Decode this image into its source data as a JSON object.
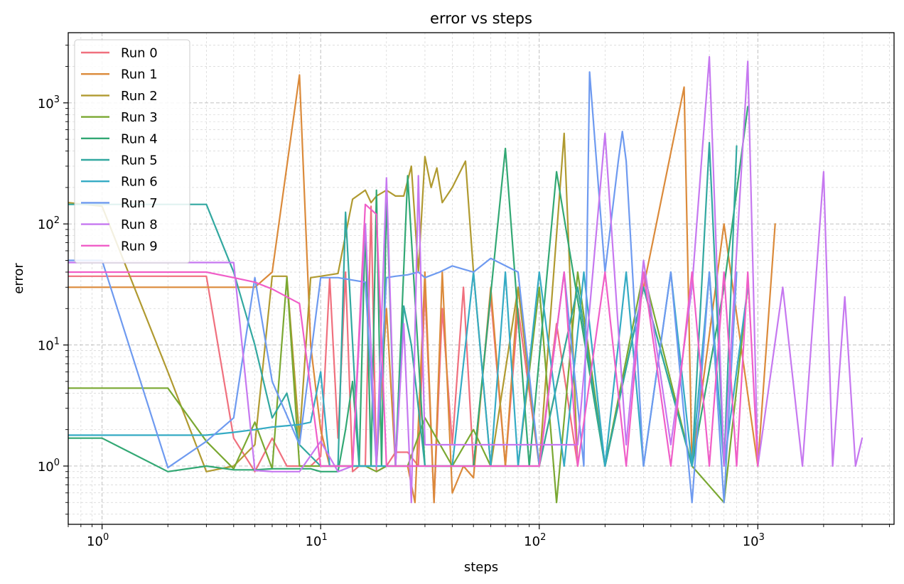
{
  "chart_data": {
    "type": "line",
    "title": "error vs steps",
    "xlabel": "steps",
    "ylabel": "error",
    "xscale": "log",
    "yscale": "log",
    "xlim": [
      0.7,
      4200
    ],
    "ylim": [
      0.33,
      3800
    ],
    "x_ticks": [
      {
        "value": 1,
        "base": "10",
        "exp": "0"
      },
      {
        "value": 10,
        "base": "10",
        "exp": "1"
      },
      {
        "value": 100,
        "base": "10",
        "exp": "2"
      },
      {
        "value": 1000,
        "base": "10",
        "exp": "3"
      }
    ],
    "y_ticks": [
      {
        "value": 1,
        "base": "10",
        "exp": "0"
      },
      {
        "value": 10,
        "base": "10",
        "exp": "1"
      },
      {
        "value": 100,
        "base": "10",
        "exp": "2"
      },
      {
        "value": 1000,
        "base": "10",
        "exp": "3"
      }
    ],
    "grid": true,
    "legend_position": "top-left",
    "series": [
      {
        "name": "Run 0",
        "color": "#f0707e",
        "x": [
          0.7,
          1,
          2,
          3,
          4,
          5,
          6,
          7,
          8,
          9,
          10,
          11,
          12,
          13,
          14,
          15,
          16,
          17,
          18,
          20,
          22,
          25,
          28,
          30,
          33,
          36,
          40,
          45,
          50,
          60,
          70,
          80,
          100,
          120,
          150
        ],
        "y": [
          37,
          37,
          37,
          37,
          1.7,
          0.9,
          1.7,
          1,
          1,
          1,
          1.2,
          36,
          1.7,
          40,
          0.9,
          1,
          1,
          140,
          0.9,
          1,
          1.3,
          1.3,
          1,
          30,
          0.5,
          20,
          1.5,
          30,
          1,
          25,
          1,
          20,
          1,
          15,
          1
        ]
      },
      {
        "name": "Run 1",
        "color": "#db8a3a",
        "x": [
          0.7,
          1,
          2,
          3,
          4,
          5,
          6,
          8,
          9,
          10,
          11,
          12,
          15,
          18,
          20,
          22,
          25,
          27,
          30,
          33,
          36,
          40,
          45,
          50,
          60,
          70,
          80,
          100,
          150,
          200,
          300,
          460,
          500,
          700,
          1000,
          1200
        ],
        "y": [
          30,
          30,
          30,
          30,
          30,
          30,
          40,
          1700,
          10,
          2,
          1,
          1,
          1,
          1,
          20,
          1,
          1,
          0.5,
          40,
          0.5,
          40,
          0.6,
          1,
          0.8,
          30,
          1,
          30,
          1,
          30,
          1,
          30,
          1350,
          1,
          100,
          1,
          100
        ]
      },
      {
        "name": "Run 2",
        "color": "#b09a30",
        "x": [
          0.7,
          1,
          2,
          3,
          4,
          5,
          6,
          7,
          8,
          9,
          10,
          12,
          14,
          16,
          17,
          18,
          20,
          22,
          24,
          26,
          28,
          30,
          32,
          34,
          36,
          40,
          46,
          50,
          60,
          80,
          100,
          130,
          150
        ],
        "y": [
          150,
          140,
          6,
          0.9,
          1,
          1.5,
          37,
          37,
          1.7,
          36,
          37,
          39,
          160,
          190,
          150,
          170,
          190,
          170,
          170,
          300,
          40,
          360,
          200,
          290,
          150,
          200,
          330,
          40,
          1,
          30,
          1,
          560,
          1
        ]
      },
      {
        "name": "Run 3",
        "color": "#7aa832",
        "x": [
          0.7,
          1,
          2,
          3,
          4,
          5,
          6,
          7,
          8,
          10,
          12,
          14,
          16,
          18,
          20,
          25,
          30,
          40,
          50,
          60,
          80,
          100,
          120,
          150,
          200,
          300,
          500,
          700,
          900
        ],
        "y": [
          4.4,
          4.4,
          4.4,
          1.6,
          0.95,
          2.3,
          0.95,
          36,
          1,
          1,
          1,
          1,
          1,
          0.9,
          1,
          1,
          2.5,
          1,
          2,
          1,
          1,
          30,
          0.5,
          40,
          1,
          40,
          1,
          0.5,
          30
        ]
      },
      {
        "name": "Run 4",
        "color": "#32a874",
        "x": [
          0.7,
          1,
          2,
          3,
          4,
          5,
          6,
          7,
          8,
          9,
          10,
          11,
          12,
          13,
          14,
          15,
          16,
          17,
          18,
          19,
          20,
          22,
          25,
          30,
          35,
          40,
          50,
          70,
          90,
          120,
          200,
          300,
          500,
          700,
          900
        ],
        "y": [
          1.7,
          1.7,
          0.9,
          1,
          0.93,
          0.93,
          0.95,
          0.95,
          0.95,
          0.95,
          0.9,
          0.9,
          0.9,
          2,
          5,
          1,
          100,
          1,
          190,
          1,
          170,
          1,
          250,
          1,
          1,
          1,
          1,
          420,
          1,
          270,
          1,
          30,
          1,
          30,
          930
        ]
      },
      {
        "name": "Run 5",
        "color": "#32a8a0",
        "x": [
          0.7,
          1,
          2,
          3,
          4,
          5,
          6,
          7,
          8,
          10,
          12,
          13,
          15,
          18,
          20,
          22,
          24,
          26,
          30,
          35,
          40,
          50,
          60,
          80,
          100,
          150,
          200,
          300,
          500,
          600,
          700,
          800
        ],
        "y": [
          145,
          145,
          145,
          145,
          40,
          10,
          2.5,
          4,
          1.5,
          1,
          1,
          125,
          1,
          1,
          1,
          1,
          21,
          10,
          1,
          1,
          1,
          1,
          1,
          1,
          1,
          30,
          1,
          30,
          1,
          470,
          1,
          440
        ]
      },
      {
        "name": "Run 6",
        "color": "#35abc4",
        "x": [
          0.7,
          1,
          2,
          3,
          4,
          5,
          6,
          8,
          9,
          10,
          11,
          12,
          14,
          16,
          18,
          20,
          22,
          25,
          30,
          33,
          36,
          40,
          50,
          60,
          70,
          80,
          100,
          130,
          160,
          200,
          250,
          300,
          400,
          500,
          600,
          700,
          900
        ],
        "y": [
          1.8,
          1.8,
          1.8,
          1.8,
          1.9,
          2.0,
          2.1,
          2.2,
          2.3,
          6,
          1,
          1,
          1,
          1,
          1,
          1,
          1,
          1,
          1,
          1,
          1,
          1,
          40,
          1,
          40,
          1,
          40,
          1,
          40,
          1,
          40,
          1,
          40,
          1,
          40,
          1,
          30
        ]
      },
      {
        "name": "Run 7",
        "color": "#6e9af0",
        "x": [
          0.7,
          1,
          2,
          3,
          4,
          5,
          6,
          8,
          10,
          12,
          16,
          18,
          20,
          22,
          25,
          28,
          30,
          35,
          40,
          50,
          60,
          80,
          100,
          130,
          160,
          170,
          200,
          230,
          240,
          250,
          300,
          400,
          500,
          600,
          700,
          800
        ],
        "y": [
          50,
          50,
          0.97,
          1.6,
          2.5,
          36,
          5,
          1.5,
          36,
          36,
          33,
          1,
          36,
          37,
          38,
          40,
          36,
          40,
          45,
          40,
          52,
          40,
          1,
          40,
          1,
          1800,
          40,
          330,
          580,
          330,
          1,
          40,
          0.5,
          40,
          0.5,
          40
        ]
      },
      {
        "name": "Run 8",
        "color": "#c678f0",
        "x": [
          0.7,
          1,
          2,
          3,
          4,
          5,
          6,
          8,
          10,
          12,
          14,
          16,
          18,
          20,
          22,
          24,
          26,
          28,
          30,
          35,
          40,
          50,
          60,
          80,
          100,
          150,
          200,
          250,
          300,
          400,
          500,
          600,
          700,
          900,
          1000,
          1300,
          1600,
          2000,
          2200,
          2500,
          2800,
          3000
        ],
        "y": [
          48,
          48,
          48,
          48,
          48,
          0.92,
          0.9,
          0.9,
          1.6,
          0.9,
          1,
          100,
          1,
          240,
          1,
          15,
          0.5,
          250,
          1.5,
          1.5,
          1.5,
          1.5,
          1.5,
          1.5,
          1.5,
          1.5,
          560,
          1.5,
          50,
          1.5,
          30,
          2400,
          1,
          2200,
          1,
          30,
          1,
          270,
          1,
          25,
          1,
          1.7
        ]
      },
      {
        "name": "Run 9",
        "color": "#f05ec8",
        "x": [
          0.7,
          1,
          2,
          3,
          4,
          5,
          6,
          8,
          10,
          12,
          14,
          16,
          18,
          20,
          25,
          30,
          35,
          40,
          50,
          60,
          80,
          100,
          130,
          150,
          200,
          250,
          300,
          400,
          500,
          600,
          700,
          800,
          900,
          1000
        ],
        "y": [
          40,
          40,
          40,
          40,
          36,
          33,
          29,
          22,
          1,
          1,
          1,
          145,
          120,
          1,
          1,
          1,
          1,
          1,
          1,
          1,
          1,
          1,
          40,
          1,
          40,
          1,
          40,
          1,
          40,
          1,
          40,
          1,
          40,
          1
        ]
      }
    ]
  }
}
